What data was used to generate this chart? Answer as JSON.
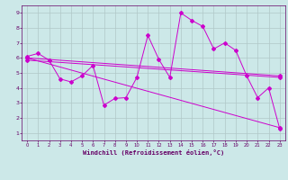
{
  "xlabel": "Windchill (Refroidissement éolien,°C)",
  "xlim": [
    -0.5,
    23.5
  ],
  "ylim": [
    0.5,
    9.5
  ],
  "xticks": [
    0,
    1,
    2,
    3,
    4,
    5,
    6,
    7,
    8,
    9,
    10,
    11,
    12,
    13,
    14,
    15,
    16,
    17,
    18,
    19,
    20,
    21,
    22,
    23
  ],
  "yticks": [
    1,
    2,
    3,
    4,
    5,
    6,
    7,
    8,
    9
  ],
  "background_color": "#cce8e8",
  "line_color": "#cc00cc",
  "grid_color": "#b0c8c8",
  "series1_x": [
    0,
    1,
    2,
    3,
    4,
    5,
    6,
    7,
    8,
    9,
    10,
    11,
    12,
    13,
    14,
    15,
    16,
    17,
    18,
    19,
    20,
    21,
    22,
    23
  ],
  "series1_y": [
    6.1,
    6.3,
    5.85,
    4.6,
    4.4,
    4.8,
    5.5,
    2.85,
    3.3,
    3.35,
    4.7,
    7.5,
    5.9,
    4.7,
    9.0,
    8.5,
    8.1,
    6.6,
    7.0,
    6.5,
    4.8,
    3.35,
    4.0,
    1.3
  ],
  "series2_x": [
    0,
    23
  ],
  "series2_y": [
    6.0,
    4.8
  ],
  "series3_x": [
    0,
    23
  ],
  "series3_y": [
    5.85,
    4.7
  ],
  "series4_x": [
    0,
    23
  ],
  "series4_y": [
    6.0,
    1.35
  ],
  "tick_color": "#660066",
  "label_color": "#660066"
}
